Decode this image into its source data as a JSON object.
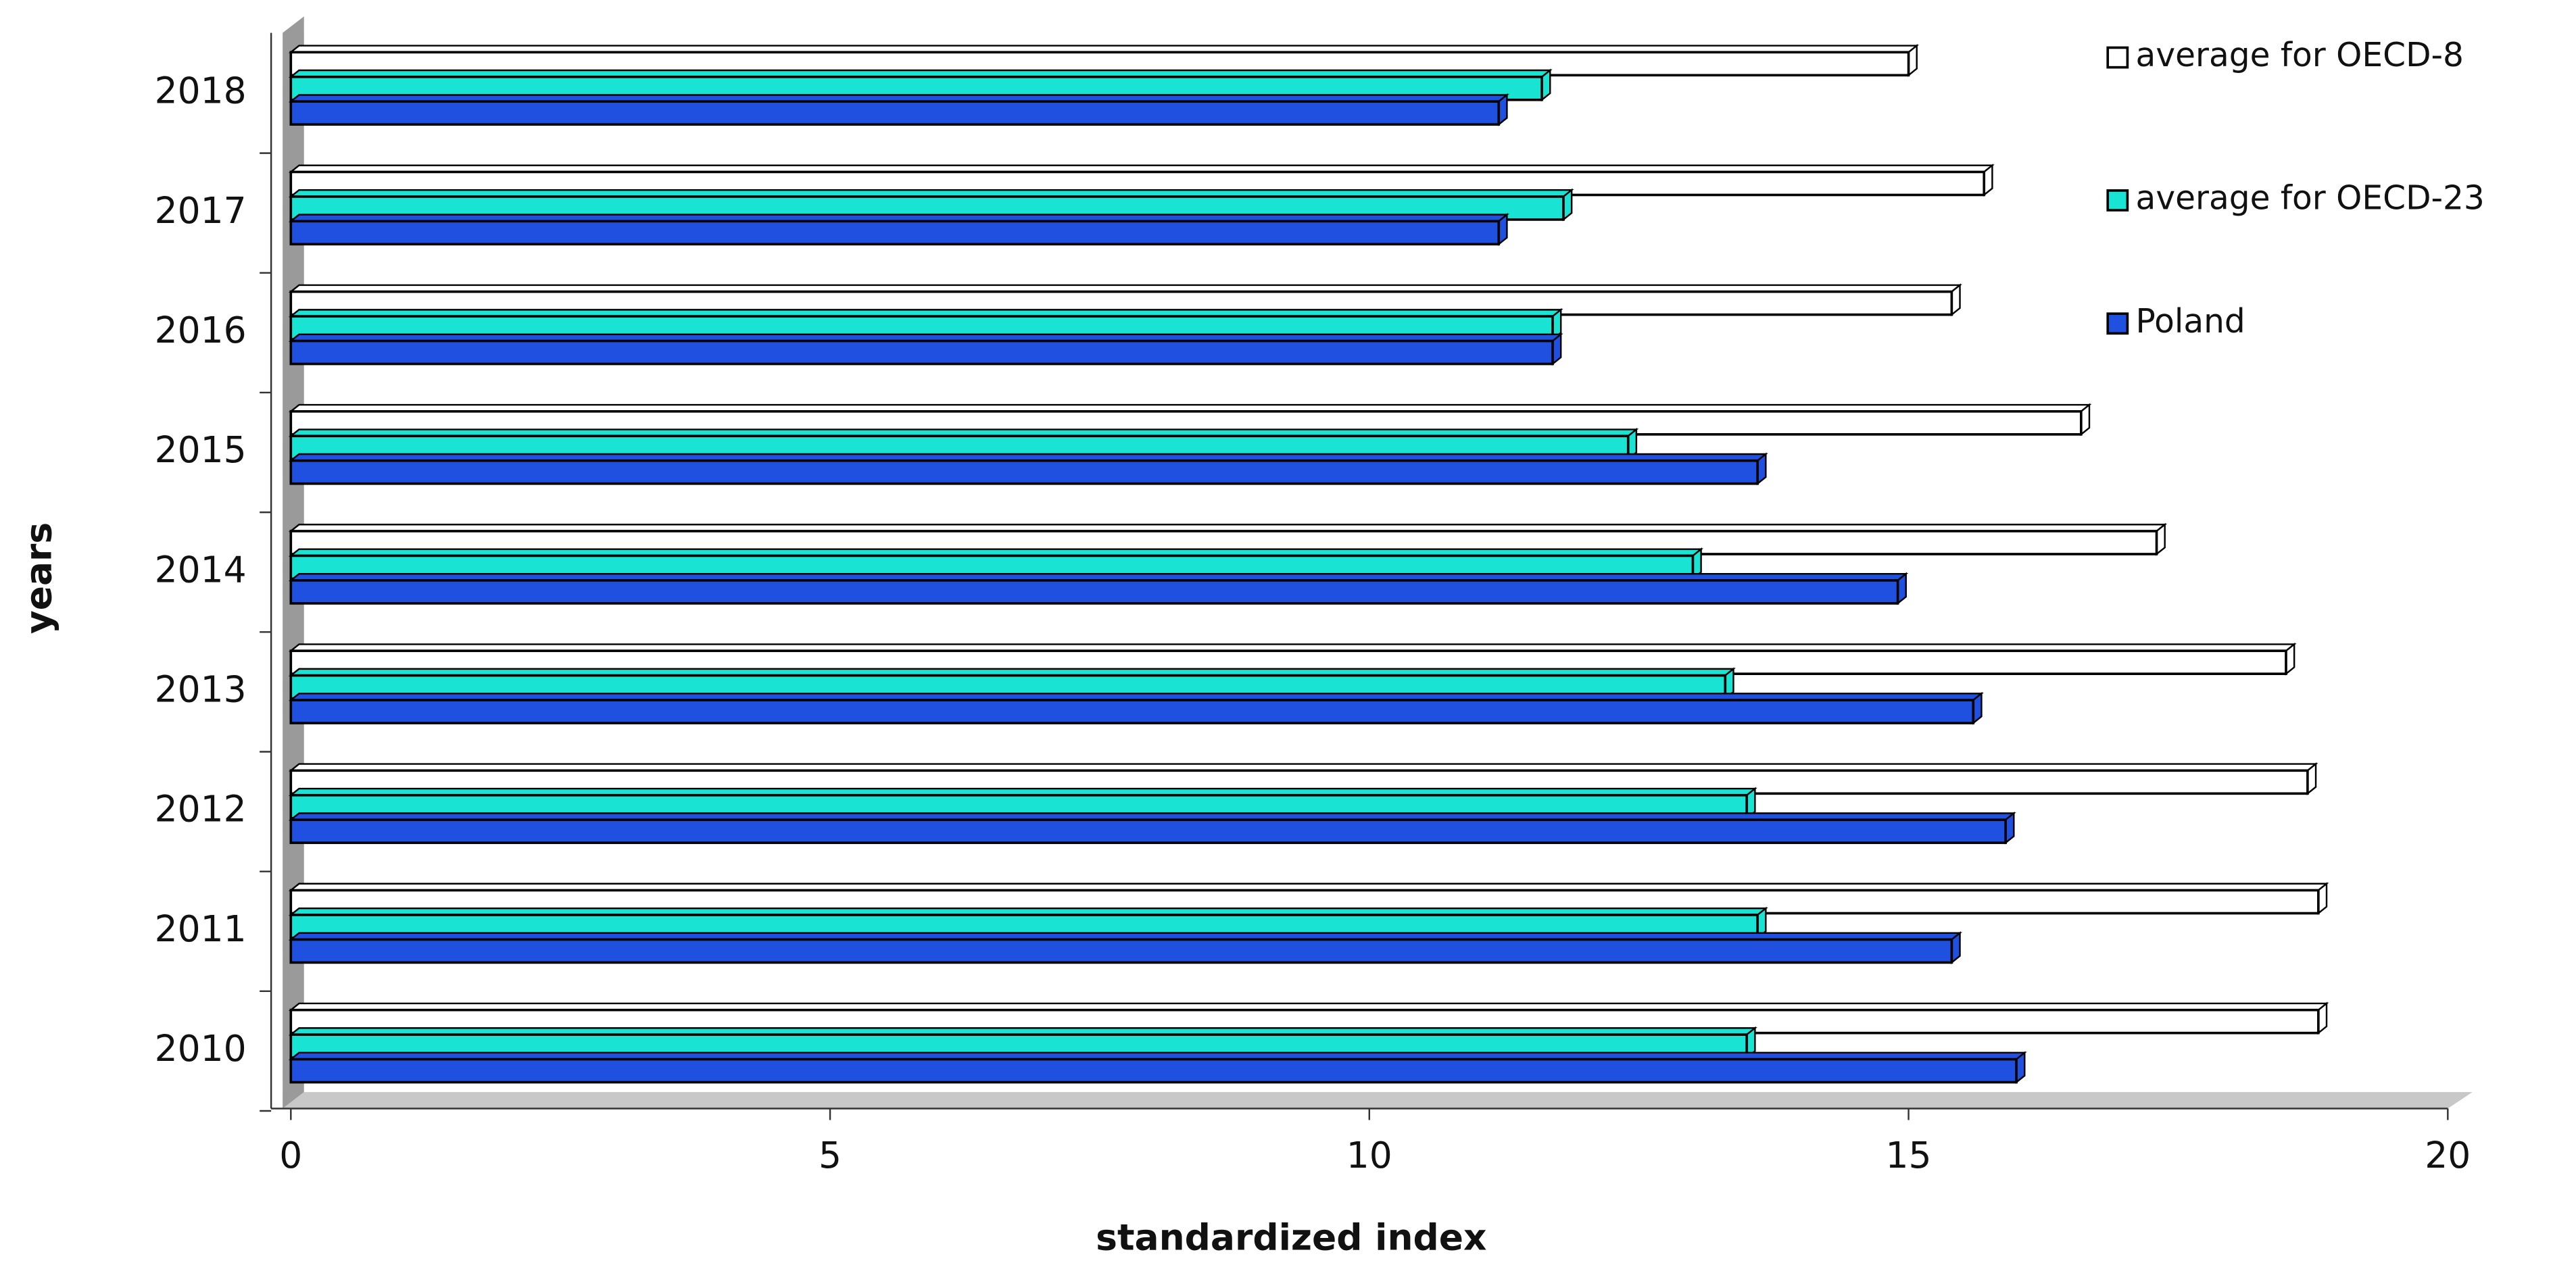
{
  "chart_data": {
    "type": "bar",
    "orientation": "horizontal",
    "3d": true,
    "x_label": "standardized index",
    "y_label": "years",
    "categories": [
      "2010",
      "2011",
      "2012",
      "2013",
      "2014",
      "2015",
      "2016",
      "2017",
      "2018"
    ],
    "series": [
      {
        "name": "average for OECD-8",
        "color": "#ffffff",
        "values": [
          18.8,
          18.8,
          18.7,
          18.5,
          17.3,
          16.6,
          15.4,
          15.7,
          15.0
        ]
      },
      {
        "name": "average for OECD-23",
        "color": "#19e3d3",
        "values": [
          13.5,
          13.6,
          13.5,
          13.3,
          13.0,
          12.4,
          11.7,
          11.8,
          11.6
        ]
      },
      {
        "name": "Poland",
        "color": "#1f50e0",
        "values": [
          16.0,
          15.4,
          15.9,
          15.6,
          14.9,
          13.6,
          11.7,
          11.2,
          11.2
        ]
      }
    ],
    "xlim": [
      0,
      20
    ],
    "xticks": [
      0,
      5,
      10,
      15,
      20
    ],
    "legend": "right"
  }
}
